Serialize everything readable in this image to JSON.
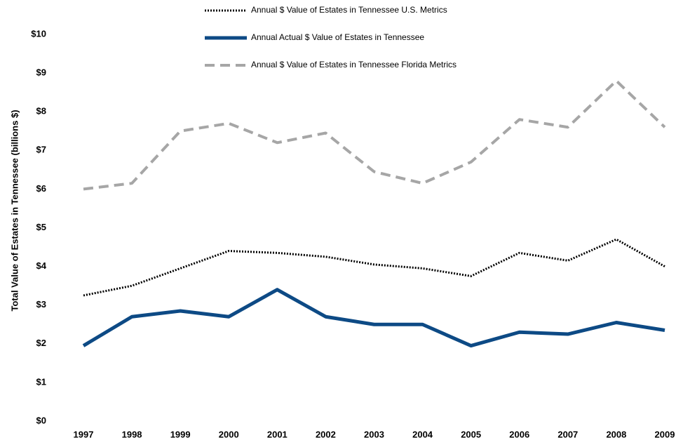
{
  "chart_data": {
    "type": "line",
    "y_label": "Total Value of Estates in Tennessee (billions $)",
    "x": [
      "1997",
      "1998",
      "1999",
      "2000",
      "2001",
      "2002",
      "2003",
      "2004",
      "2005",
      "2006",
      "2007",
      "2008",
      "2009"
    ],
    "series": [
      {
        "name": "Annual $ Value of Estates in Tennessee U.S. Metrics",
        "color": "#000000",
        "line_style": "dotted",
        "values": [
          3.25,
          3.5,
          3.95,
          4.4,
          4.35,
          4.25,
          4.05,
          3.95,
          3.75,
          4.35,
          4.15,
          4.7,
          4.0
        ]
      },
      {
        "name": "Annual Actual $ Value of Estates in Tennessee",
        "color": "#0d4a85",
        "line_style": "solid",
        "values": [
          1.95,
          2.7,
          2.85,
          2.7,
          3.4,
          2.7,
          2.5,
          2.5,
          1.95,
          2.3,
          2.25,
          2.55,
          2.35
        ]
      },
      {
        "name": "Annual $ Value of Estates in Tennessee Florida Metrics",
        "color": "#a6a6a6",
        "line_style": "dashed",
        "values": [
          6.0,
          6.15,
          7.5,
          7.7,
          7.2,
          7.45,
          6.45,
          6.15,
          6.7,
          7.8,
          7.6,
          8.8,
          7.6
        ]
      }
    ],
    "ylim": [
      0,
      10
    ],
    "yticks": [
      {
        "value": 0,
        "label": "$0"
      },
      {
        "value": 1,
        "label": "$1"
      },
      {
        "value": 2,
        "label": "$2"
      },
      {
        "value": 3,
        "label": "$3"
      },
      {
        "value": 4,
        "label": "$4"
      },
      {
        "value": 5,
        "label": "$5"
      },
      {
        "value": 6,
        "label": "$6"
      },
      {
        "value": 7,
        "label": "$7"
      },
      {
        "value": 8,
        "label": "$8"
      },
      {
        "value": 9,
        "label": "$9"
      },
      {
        "value": 10,
        "label": "$10"
      }
    ],
    "grid": false,
    "legend": "top"
  }
}
